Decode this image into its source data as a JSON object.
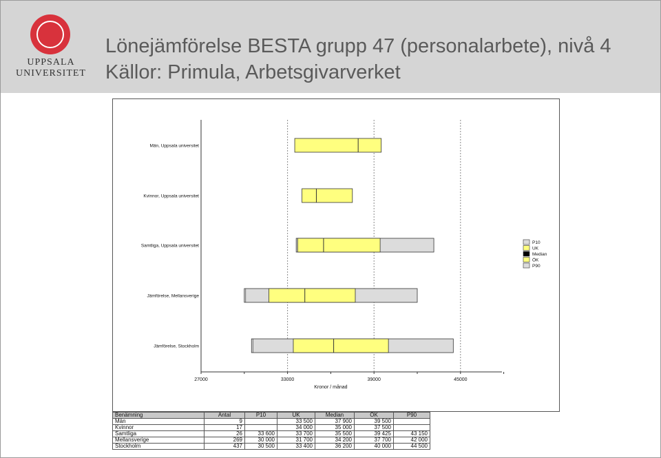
{
  "logo": {
    "line1": "UPPSALA",
    "line2": "UNIVERSITET"
  },
  "title": {
    "line1": "Lönejämförelse BESTA grupp 47 (personalarbete), nivå 4",
    "line2": "Källor: Primula, Arbetsgivarverket"
  },
  "colors": {
    "header_bg": "#d5d5d5",
    "logo_red": "#d8323c",
    "gray_bar": "#dcdcdc",
    "yellow_bar": "#ffff7f"
  },
  "chart_data": {
    "type": "bar",
    "orientation": "horizontal-range",
    "categories": [
      "Män, Uppsala universitet",
      "Kvinnor, Uppsala universitet",
      "Samtliga, Uppsala universitet",
      "Jämförelse, Mellansverige",
      "Jämförelse, Stockholm"
    ],
    "series": [
      {
        "name": "P10",
        "values": [
          null,
          null,
          33600,
          30000,
          30500
        ]
      },
      {
        "name": "UK",
        "values": [
          33500,
          34000,
          33700,
          31700,
          33400
        ]
      },
      {
        "name": "Median",
        "values": [
          37900,
          35000,
          35500,
          34200,
          36200
        ]
      },
      {
        "name": "ÖK",
        "values": [
          39500,
          37500,
          39425,
          37700,
          40000
        ]
      },
      {
        "name": "P90",
        "values": [
          null,
          null,
          43150,
          42000,
          44500
        ]
      }
    ],
    "xlim": [
      27000,
      48000
    ],
    "xticks": [
      "27000",
      "33000",
      "39000",
      "45000"
    ],
    "xlabel": "Kronor / månad",
    "gridlines_at": [
      33000,
      39000,
      45000
    ],
    "legend_position": "right",
    "legend": [
      "P10",
      "UK",
      "Median",
      "ÖK",
      "P90"
    ]
  },
  "table": {
    "headers": [
      "Benämning",
      "Antal",
      "P10",
      "UK",
      "Median",
      "ÖK",
      "P90"
    ],
    "rows": [
      [
        "Män",
        "9",
        "",
        "33 500",
        "37 900",
        "39 500",
        ""
      ],
      [
        "Kvinnor",
        "17",
        "",
        "34 000",
        "35 000",
        "37 500",
        ""
      ],
      [
        "Samtliga",
        "26",
        "33 600",
        "33 700",
        "35 500",
        "39 425",
        "43 150"
      ],
      [
        "Mellansverige",
        "269",
        "30 000",
        "31 700",
        "34 200",
        "37 700",
        "42 000"
      ],
      [
        "Stockholm",
        "437",
        "30 500",
        "33 400",
        "36 200",
        "40 000",
        "44 500"
      ]
    ]
  }
}
